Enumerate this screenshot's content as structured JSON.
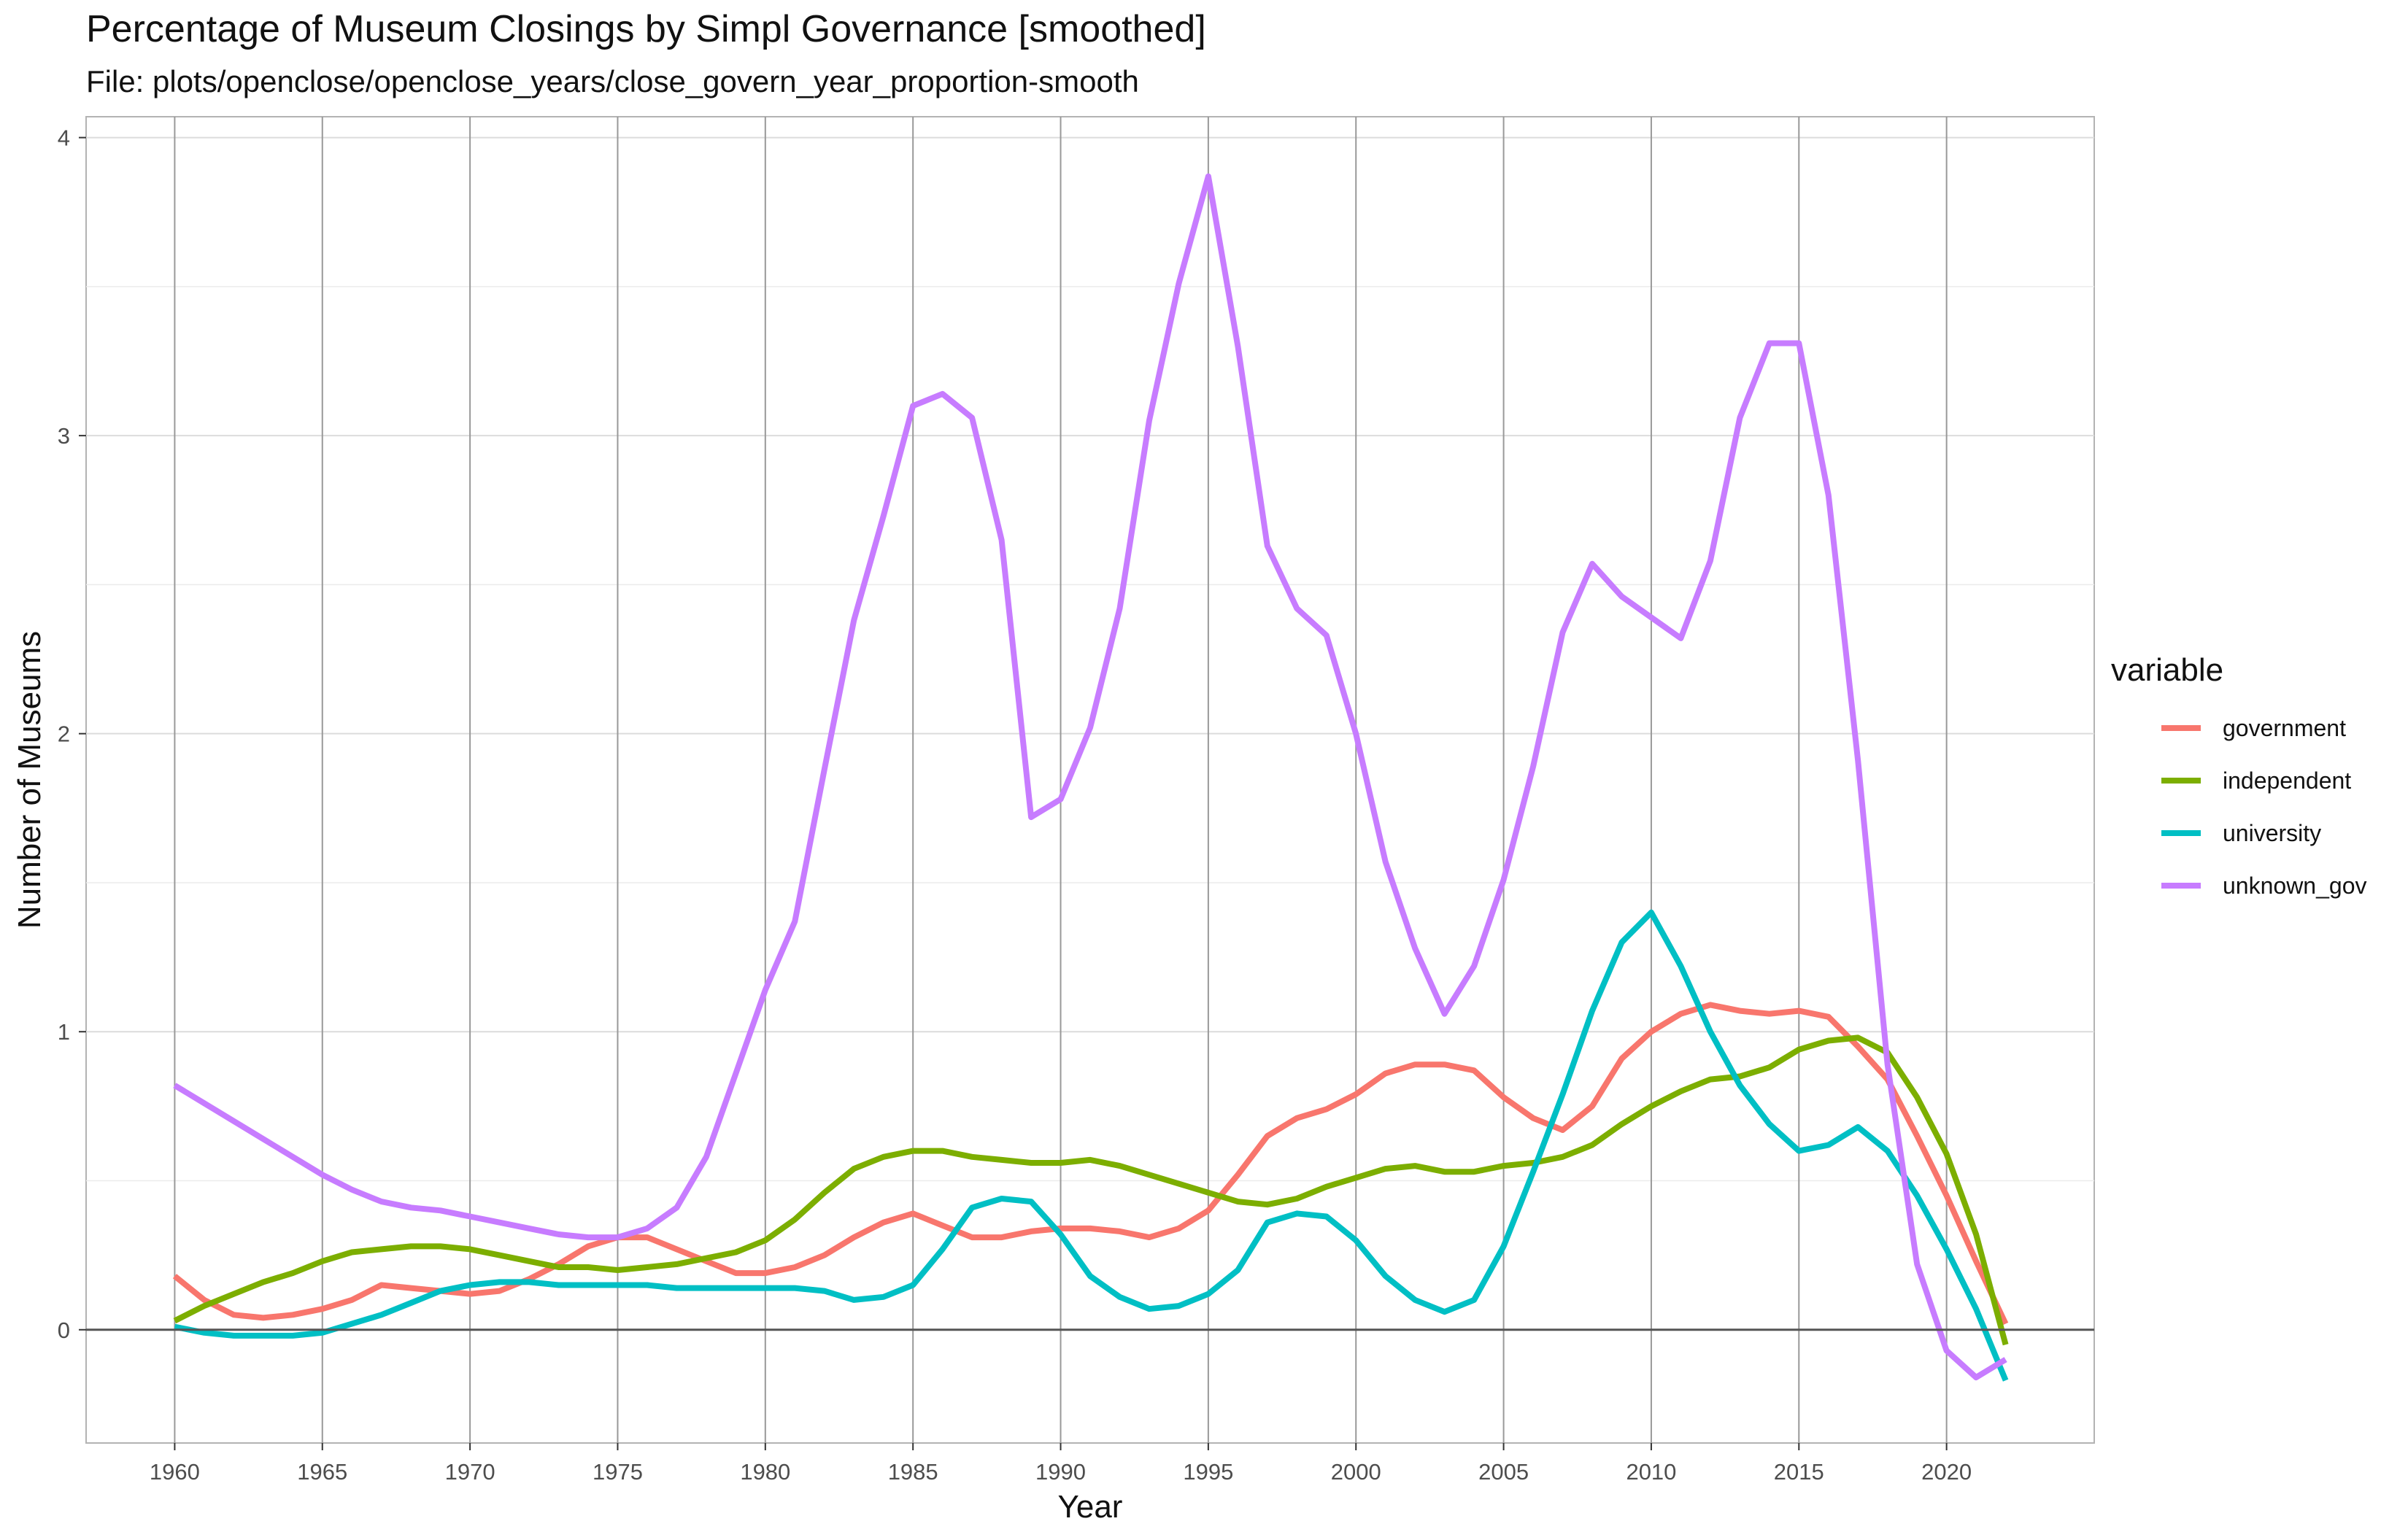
{
  "chart_data": {
    "type": "line",
    "title": "Percentage of Museum Closings by Simpl Governance [smoothed]",
    "subtitle": "File: plots/openclose/openclose_years/close_govern_year_proportion-smooth",
    "xlabel": "Year",
    "ylabel": "Number of Museums",
    "xlim": [
      1957,
      2025
    ],
    "ylim": [
      -0.38,
      4.07
    ],
    "x_ticks": [
      1960,
      1965,
      1970,
      1975,
      1980,
      1985,
      1990,
      1995,
      2000,
      2005,
      2010,
      2015,
      2020
    ],
    "y_ticks": [
      0,
      1,
      2,
      3,
      4
    ],
    "grid": true,
    "legend_title": "variable",
    "legend_position": "right",
    "x": [
      1960,
      1961,
      1962,
      1963,
      1964,
      1965,
      1966,
      1967,
      1968,
      1969,
      1970,
      1971,
      1972,
      1973,
      1974,
      1975,
      1976,
      1977,
      1978,
      1979,
      1980,
      1981,
      1982,
      1983,
      1984,
      1985,
      1986,
      1987,
      1988,
      1989,
      1990,
      1991,
      1992,
      1993,
      1994,
      1995,
      1996,
      1997,
      1998,
      1999,
      2000,
      2001,
      2002,
      2003,
      2004,
      2005,
      2006,
      2007,
      2008,
      2009,
      2010,
      2011,
      2012,
      2013,
      2014,
      2015,
      2016,
      2017,
      2018,
      2019,
      2020,
      2021,
      2022
    ],
    "series": [
      {
        "name": "government",
        "color": "#F8766D",
        "values": [
          0.18,
          0.1,
          0.05,
          0.04,
          0.05,
          0.07,
          0.1,
          0.15,
          0.14,
          0.13,
          0.12,
          0.13,
          0.17,
          0.22,
          0.28,
          0.31,
          0.31,
          0.27,
          0.23,
          0.19,
          0.19,
          0.21,
          0.25,
          0.31,
          0.36,
          0.39,
          0.35,
          0.31,
          0.31,
          0.33,
          0.34,
          0.34,
          0.33,
          0.31,
          0.34,
          0.4,
          0.52,
          0.65,
          0.71,
          0.74,
          0.79,
          0.86,
          0.89,
          0.89,
          0.87,
          0.78,
          0.71,
          0.67,
          0.75,
          0.91,
          1.0,
          1.06,
          1.09,
          1.07,
          1.06,
          1.07,
          1.05,
          0.95,
          0.84,
          0.65,
          0.45,
          0.23,
          0.02
        ]
      },
      {
        "name": "independent",
        "color": "#7CAE00",
        "values": [
          0.03,
          0.08,
          0.12,
          0.16,
          0.19,
          0.23,
          0.26,
          0.27,
          0.28,
          0.28,
          0.27,
          0.25,
          0.23,
          0.21,
          0.21,
          0.2,
          0.21,
          0.22,
          0.24,
          0.26,
          0.3,
          0.37,
          0.46,
          0.54,
          0.58,
          0.6,
          0.6,
          0.58,
          0.57,
          0.56,
          0.56,
          0.57,
          0.55,
          0.52,
          0.49,
          0.46,
          0.43,
          0.42,
          0.44,
          0.48,
          0.51,
          0.54,
          0.55,
          0.53,
          0.53,
          0.55,
          0.56,
          0.58,
          0.62,
          0.69,
          0.75,
          0.8,
          0.84,
          0.85,
          0.88,
          0.94,
          0.97,
          0.98,
          0.93,
          0.78,
          0.59,
          0.32,
          -0.05
        ]
      },
      {
        "name": "university",
        "color": "#00BFC4",
        "values": [
          0.01,
          -0.01,
          -0.02,
          -0.02,
          -0.02,
          -0.01,
          0.02,
          0.05,
          0.09,
          0.13,
          0.15,
          0.16,
          0.16,
          0.15,
          0.15,
          0.15,
          0.15,
          0.14,
          0.14,
          0.14,
          0.14,
          0.14,
          0.13,
          0.1,
          0.11,
          0.15,
          0.27,
          0.41,
          0.44,
          0.43,
          0.32,
          0.18,
          0.11,
          0.07,
          0.08,
          0.12,
          0.2,
          0.36,
          0.39,
          0.38,
          0.3,
          0.18,
          0.1,
          0.06,
          0.1,
          0.28,
          0.53,
          0.79,
          1.07,
          1.3,
          1.4,
          1.22,
          1.0,
          0.82,
          0.69,
          0.6,
          0.62,
          0.68,
          0.6,
          0.45,
          0.27,
          0.07,
          -0.17
        ]
      },
      {
        "name": "unknown_gov",
        "color": "#C77CFF",
        "values": [
          0.82,
          0.76,
          0.7,
          0.64,
          0.58,
          0.52,
          0.47,
          0.43,
          0.41,
          0.4,
          0.38,
          0.36,
          0.34,
          0.32,
          0.31,
          0.31,
          0.34,
          0.41,
          0.58,
          0.86,
          1.14,
          1.37,
          1.88,
          2.38,
          2.73,
          3.1,
          3.14,
          3.06,
          2.65,
          1.72,
          1.78,
          2.02,
          2.42,
          3.05,
          3.51,
          3.87,
          3.3,
          2.63,
          2.42,
          2.33,
          2.0,
          1.57,
          1.28,
          1.06,
          1.22,
          1.51,
          1.89,
          2.34,
          2.57,
          2.46,
          2.39,
          2.32,
          2.58,
          3.06,
          3.31,
          3.31,
          2.8,
          1.91,
          0.89,
          0.22,
          -0.07,
          -0.16,
          -0.1
        ]
      }
    ]
  }
}
